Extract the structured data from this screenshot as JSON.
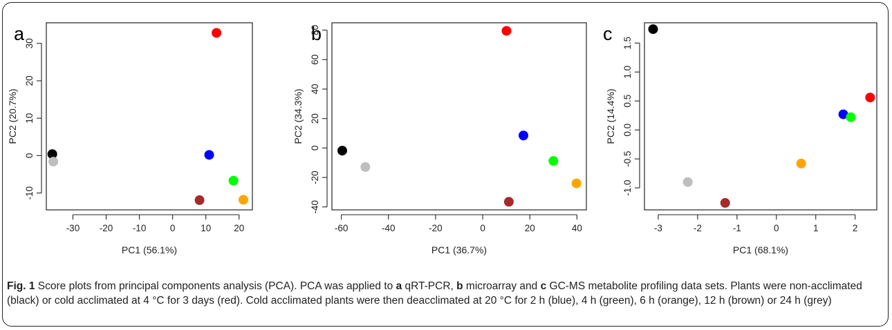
{
  "chart_data": [
    {
      "type": "scatter",
      "panel_label": "a",
      "xlabel": "PC1 (56.1%)",
      "ylabel": "PC2 (20.7%)",
      "xlim": [
        -38,
        24
      ],
      "ylim": [
        -14.5,
        35.5
      ],
      "xticks": [
        -30,
        -20,
        -10,
        0,
        10,
        20
      ],
      "yticks": [
        -10,
        0,
        10,
        20,
        30
      ],
      "grid": false,
      "points": [
        {
          "x": 13.2,
          "y": 32.8,
          "color": "#ff0000"
        },
        {
          "x": -36.2,
          "y": 0.4,
          "color": "#000000"
        },
        {
          "x": -35.9,
          "y": -1.6,
          "color": "#bebebe"
        },
        {
          "x": 11.0,
          "y": 0.2,
          "color": "#0000ff"
        },
        {
          "x": 18.3,
          "y": -6.7,
          "color": "#00ff00"
        },
        {
          "x": 8.1,
          "y": -11.9,
          "color": "#a52a2a"
        },
        {
          "x": 21.3,
          "y": -11.8,
          "color": "#ffa500"
        }
      ]
    },
    {
      "type": "scatter",
      "panel_label": "b",
      "xlabel": "PC1 (36.7%)",
      "ylabel": "PC2 (34.3%)",
      "xlim": [
        -64,
        44
      ],
      "ylim": [
        -42,
        85
      ],
      "xticks": [
        -60,
        -40,
        -20,
        0,
        20,
        40
      ],
      "yticks": [
        -40,
        -20,
        0,
        20,
        40,
        60,
        80
      ],
      "grid": false,
      "points": [
        {
          "x": 10.1,
          "y": 79.5,
          "color": "#ff0000"
        },
        {
          "x": -59.6,
          "y": -1.8,
          "color": "#000000"
        },
        {
          "x": -49.8,
          "y": -12.9,
          "color": "#bebebe"
        },
        {
          "x": 17.3,
          "y": 8.5,
          "color": "#0000ff"
        },
        {
          "x": 30.0,
          "y": -8.8,
          "color": "#00ff00"
        },
        {
          "x": 11.1,
          "y": -36.5,
          "color": "#a52a2a"
        },
        {
          "x": 39.8,
          "y": -24.0,
          "color": "#ffa500"
        }
      ]
    },
    {
      "type": "scatter",
      "panel_label": "c",
      "xlabel": "PC1 (68.1%)",
      "ylabel": "PC2 (14.4%)",
      "xlim": [
        -3.35,
        2.55
      ],
      "ylim": [
        -1.38,
        1.85
      ],
      "xticks": [
        -3,
        -2,
        -1,
        0,
        1,
        2
      ],
      "yticks": [
        -1.0,
        -0.5,
        0.0,
        0.5,
        1.0,
        1.5
      ],
      "ytick_labels": [
        "-1.0",
        "-0.5",
        "0.0",
        "0.5",
        "1.0",
        "1.5"
      ],
      "grid": false,
      "points": [
        {
          "x": -3.13,
          "y": 1.74,
          "color": "#000000"
        },
        {
          "x": 2.38,
          "y": 0.56,
          "color": "#ff0000"
        },
        {
          "x": 1.7,
          "y": 0.27,
          "color": "#0000ff"
        },
        {
          "x": 1.89,
          "y": 0.22,
          "color": "#00ff00"
        },
        {
          "x": 0.63,
          "y": -0.58,
          "color": "#ffa500"
        },
        {
          "x": -2.25,
          "y": -0.9,
          "color": "#bebebe"
        },
        {
          "x": -1.3,
          "y": -1.26,
          "color": "#a52a2a"
        }
      ]
    }
  ],
  "caption": {
    "fig_label": "Fig. 1",
    "segments": [
      {
        "text": " Score plots from principal components analysis (PCA). PCA was applied to ",
        "bold": false
      },
      {
        "text": "a",
        "bold": true
      },
      {
        "text": " qRT-PCR, ",
        "bold": false
      },
      {
        "text": "b",
        "bold": true
      },
      {
        "text": " microarray and ",
        "bold": false
      },
      {
        "text": "c",
        "bold": true
      },
      {
        "text": " GC-MS metabolite profiling data sets. Plants were non-acclimated (black) or cold acclimated at 4 °C for 3 days (red). Cold acclimated plants were then deacclimated at 20 °C for 2 h (blue), 4 h (green), 6 h (orange), 12 h (brown) or 24 h (grey)",
        "bold": false
      }
    ]
  }
}
